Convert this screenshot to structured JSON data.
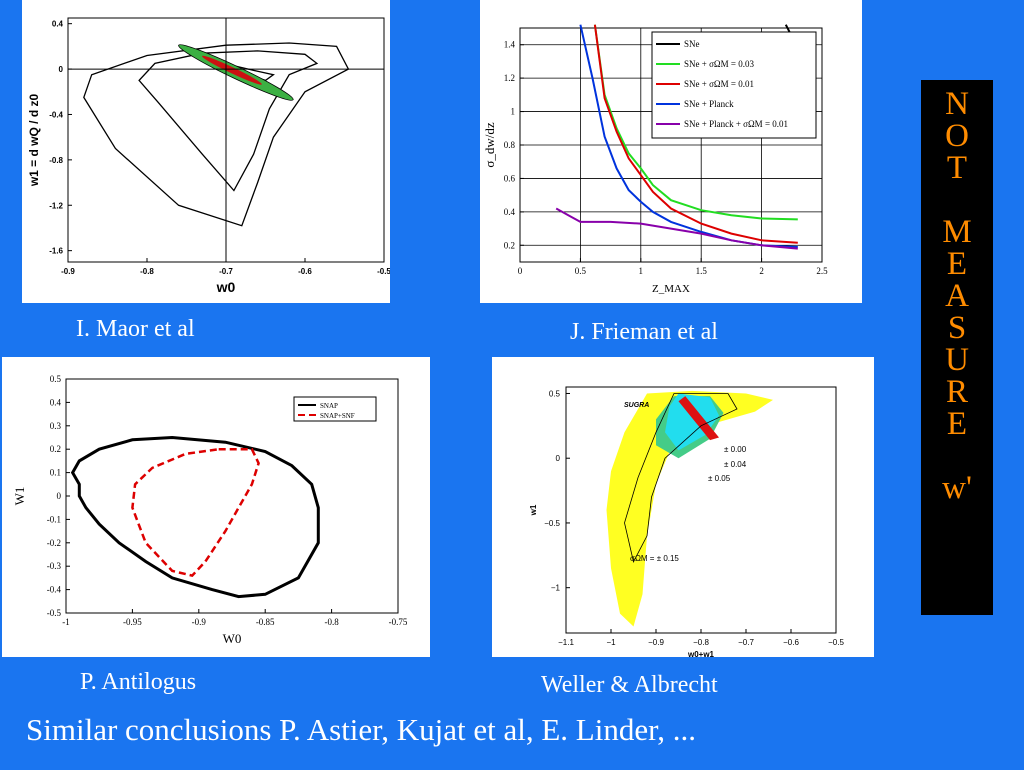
{
  "captions": {
    "maor": "I. Maor et al",
    "frieman": "J. Frieman et al",
    "antilogus": "P. Antilogus",
    "weller": "Weller & Albrecht"
  },
  "side_letters_top": [
    "N",
    "O",
    "T"
  ],
  "side_letters_mid": [
    "M",
    "E",
    "A",
    "S",
    "U",
    "R",
    "E"
  ],
  "side_word_bottom": "w'",
  "bottom_text": "Similar conclusions P. Astier, Kujat et al, E. Linder, ...",
  "colors": {
    "background": "#1a75f0",
    "side_text": "#ff8c00"
  },
  "chart_data": [
    {
      "id": "maor",
      "type": "line",
      "xlabel": "w0",
      "ylabel": "w1 = d wQ / d z0",
      "xlim": [
        -0.9,
        -0.5
      ],
      "ylim": [
        -1.7,
        0.45
      ],
      "x_ticks": [
        "-0.9",
        "-0.8",
        "-0.7",
        "-0.6",
        "-0.5"
      ],
      "y_ticks": [
        "0.4",
        "0",
        "-0.4",
        "-0.8",
        "-1.2",
        "-1.6"
      ],
      "x_tick_values": [
        -0.9,
        -0.8,
        -0.7,
        -0.6,
        -0.5
      ],
      "y_tick_values": [
        0.4,
        0,
        -0.4,
        -0.8,
        -1.2,
        -1.6
      ],
      "series": [
        {
          "values": [
            [
              -0.56,
              0.2
            ],
            [
              -0.545,
              0
            ],
            [
              -0.6,
              -0.2
            ],
            [
              -0.64,
              -0.6
            ],
            [
              -0.66,
              -1.0
            ],
            [
              -0.68,
              -1.38
            ],
            [
              -0.76,
              -1.2
            ],
            [
              -0.84,
              -0.7
            ],
            [
              -0.88,
              -0.25
            ],
            [
              -0.87,
              -0.05
            ],
            [
              -0.8,
              0.12
            ],
            [
              -0.7,
              0.21
            ],
            [
              -0.62,
              0.23
            ],
            [
              -0.56,
              0.2
            ]
          ]
        },
        {
          "values": [
            [
              -0.6,
              0.13
            ],
            [
              -0.585,
              0.05
            ],
            [
              -0.62,
              -0.05
            ],
            [
              -0.645,
              -0.35
            ],
            [
              -0.665,
              -0.75
            ],
            [
              -0.69,
              -1.07
            ],
            [
              -0.73,
              -0.75
            ],
            [
              -0.785,
              -0.3
            ],
            [
              -0.81,
              -0.1
            ],
            [
              -0.79,
              0.05
            ],
            [
              -0.73,
              0.14
            ],
            [
              -0.66,
              0.16
            ],
            [
              -0.6,
              0.13
            ]
          ]
        },
        {
          "values": [
            [
              -0.725,
              0.1
            ],
            [
              -0.71,
              0.02
            ],
            [
              -0.68,
              -0.03
            ],
            [
              -0.65,
              -0.1
            ],
            [
              -0.64,
              -0.05
            ],
            [
              -0.66,
              -0.02
            ],
            [
              -0.69,
              0.03
            ],
            [
              -0.725,
              0.1
            ]
          ]
        }
      ],
      "green_band": [
        [
          -0.76,
          0.21
        ],
        [
          -0.615,
          -0.27
        ]
      ],
      "red_band": [
        [
          -0.73,
          0.12
        ],
        [
          -0.655,
          -0.14
        ]
      ],
      "vline": -0.7,
      "hline": 0
    },
    {
      "id": "frieman",
      "type": "line",
      "xlabel": "Z_MAX",
      "ylabel": "σ_dw/dz",
      "xlim": [
        0,
        2.5
      ],
      "ylim": [
        0.1,
        1.5
      ],
      "x_ticks": [
        "0",
        "0.5",
        "1",
        "1.5",
        "2",
        "2.5"
      ],
      "y_ticks": [
        "0.2",
        "0.4",
        "0.6",
        "0.8",
        "1",
        "1.2",
        "1.4"
      ],
      "x_tick_values": [
        0,
        0.5,
        1,
        1.5,
        2,
        2.5
      ],
      "y_tick_values": [
        0.2,
        0.4,
        0.6,
        0.8,
        1,
        1.2,
        1.4
      ],
      "legend_position": "top-right",
      "legend": [
        "SNe",
        "SNe + σΩM = 0.03",
        "SNe + σΩM = 0.01",
        "SNe + Planck",
        "SNe + Planck + σΩM = 0.01"
      ],
      "series": [
        {
          "name": "SNe",
          "color": "#000000",
          "values": [
            [
              2.2,
              1.52
            ],
            [
              2.3,
              1.38
            ]
          ]
        },
        {
          "name": "SNe + σΩM = 0.03",
          "color": "#22dd22",
          "values": [
            [
              0.62,
              1.52
            ],
            [
              0.7,
              1.1
            ],
            [
              0.8,
              0.9
            ],
            [
              0.9,
              0.75
            ],
            [
              1.0,
              0.66
            ],
            [
              1.1,
              0.56
            ],
            [
              1.25,
              0.47
            ],
            [
              1.5,
              0.41
            ],
            [
              1.75,
              0.38
            ],
            [
              2.0,
              0.36
            ],
            [
              2.3,
              0.355
            ]
          ]
        },
        {
          "name": "SNe + σΩM = 0.01",
          "color": "#dd0000",
          "values": [
            [
              0.62,
              1.52
            ],
            [
              0.7,
              1.08
            ],
            [
              0.8,
              0.88
            ],
            [
              0.9,
              0.72
            ],
            [
              1.0,
              0.62
            ],
            [
              1.1,
              0.52
            ],
            [
              1.25,
              0.42
            ],
            [
              1.5,
              0.33
            ],
            [
              1.75,
              0.27
            ],
            [
              2.0,
              0.23
            ],
            [
              2.3,
              0.215
            ]
          ]
        },
        {
          "name": "SNe + Planck",
          "color": "#0033dd",
          "values": [
            [
              0.5,
              1.52
            ],
            [
              0.6,
              1.2
            ],
            [
              0.7,
              0.85
            ],
            [
              0.8,
              0.66
            ],
            [
              0.9,
              0.53
            ],
            [
              1.0,
              0.46
            ],
            [
              1.1,
              0.4
            ],
            [
              1.25,
              0.34
            ],
            [
              1.5,
              0.28
            ],
            [
              1.75,
              0.23
            ],
            [
              2.0,
              0.2
            ],
            [
              2.3,
              0.19
            ]
          ]
        },
        {
          "name": "SNe + Planck + σΩM = 0.01",
          "color": "#8800aa",
          "values": [
            [
              0.3,
              0.42
            ],
            [
              0.4,
              0.38
            ],
            [
              0.5,
              0.34
            ],
            [
              0.75,
              0.34
            ],
            [
              1.0,
              0.33
            ],
            [
              1.25,
              0.3
            ],
            [
              1.5,
              0.27
            ],
            [
              1.75,
              0.23
            ],
            [
              2.0,
              0.2
            ],
            [
              2.3,
              0.18
            ]
          ]
        }
      ]
    },
    {
      "id": "antilogus",
      "type": "line",
      "xlabel": "W0",
      "ylabel": "W1",
      "xlim": [
        -1,
        -0.75
      ],
      "ylim": [
        -0.5,
        0.5
      ],
      "x_ticks": [
        "-1",
        "-0.95",
        "-0.9",
        "-0.85",
        "-0.8",
        "-0.75"
      ],
      "y_ticks": [
        "0.5",
        "0.4",
        "0.3",
        "0.2",
        "0.1",
        "0",
        "-0.1",
        "-0.2",
        "-0.3",
        "-0.4",
        "-0.5"
      ],
      "x_tick_values": [
        -1,
        -0.95,
        -0.9,
        -0.85,
        -0.8,
        -0.75
      ],
      "y_tick_values": [
        0.5,
        0.4,
        0.3,
        0.2,
        0.1,
        0,
        -0.1,
        -0.2,
        -0.3,
        -0.4,
        -0.5
      ],
      "legend_position": "top-right",
      "legend": [
        "SNAP",
        "SNAP+SNF"
      ],
      "series": [
        {
          "name": "SNAP",
          "color": "#000000",
          "values": [
            [
              -0.995,
              0.1
            ],
            [
              -0.99,
              0.05
            ],
            [
              -0.99,
              0.0
            ],
            [
              -0.985,
              -0.05
            ],
            [
              -0.975,
              -0.12
            ],
            [
              -0.96,
              -0.2
            ],
            [
              -0.94,
              -0.28
            ],
            [
              -0.92,
              -0.35
            ],
            [
              -0.89,
              -0.4
            ],
            [
              -0.87,
              -0.43
            ],
            [
              -0.85,
              -0.42
            ],
            [
              -0.825,
              -0.35
            ],
            [
              -0.81,
              -0.2
            ],
            [
              -0.81,
              -0.05
            ],
            [
              -0.815,
              0.05
            ],
            [
              -0.83,
              0.13
            ],
            [
              -0.85,
              0.19
            ],
            [
              -0.88,
              0.23
            ],
            [
              -0.92,
              0.25
            ],
            [
              -0.95,
              0.24
            ],
            [
              -0.975,
              0.2
            ],
            [
              -0.99,
              0.15
            ],
            [
              -0.995,
              0.1
            ]
          ]
        },
        {
          "name": "SNAP+SNF",
          "color": "#dd0000",
          "values": [
            [
              -0.885,
              0.2
            ],
            [
              -0.86,
              0.2
            ],
            [
              -0.855,
              0.14
            ],
            [
              -0.86,
              0.05
            ],
            [
              -0.87,
              -0.05
            ],
            [
              -0.88,
              -0.15
            ],
            [
              -0.895,
              -0.28
            ],
            [
              -0.905,
              -0.34
            ],
            [
              -0.92,
              -0.32
            ],
            [
              -0.94,
              -0.2
            ],
            [
              -0.95,
              -0.05
            ],
            [
              -0.948,
              0.05
            ],
            [
              -0.935,
              0.12
            ],
            [
              -0.91,
              0.18
            ],
            [
              -0.885,
              0.2
            ]
          ]
        }
      ]
    },
    {
      "id": "weller",
      "type": "area",
      "title": "SUGRA",
      "xlabel": "w0+w1",
      "ylabel": "w1",
      "xlim": [
        -1.1,
        -0.5
      ],
      "ylim": [
        -1.35,
        0.55
      ],
      "x_ticks": [
        "−1.1",
        "−1",
        "−0.9",
        "−0.8",
        "−0.7",
        "−0.6",
        "−0.5"
      ],
      "y_ticks": [
        "0.5",
        "0",
        "−0.5",
        "−1"
      ],
      "x_tick_values": [
        -1.1,
        -1.0,
        -0.9,
        -0.8,
        -0.7,
        -0.6,
        -0.5
      ],
      "y_tick_values": [
        0.5,
        0,
        -0.5,
        -1.0
      ],
      "annotations": [
        "± 0.00",
        "± 0.04",
        "± 0.05",
        "σΩM = ± 0.15"
      ],
      "series": [
        {
          "name": "",
          "color": "#ffff22",
          "values": [
            [
              -0.92,
              0.5
            ],
            [
              -0.82,
              0.52
            ],
            [
              -0.7,
              0.5
            ],
            [
              -0.64,
              0.45
            ],
            [
              -0.68,
              0.36
            ],
            [
              -0.74,
              0.3
            ],
            [
              -0.82,
              0.22
            ],
            [
              -0.87,
              0.05
            ],
            [
              -0.9,
              -0.2
            ],
            [
              -0.92,
              -0.6
            ],
            [
              -0.93,
              -1.05
            ],
            [
              -0.95,
              -1.3
            ],
            [
              -0.98,
              -1.2
            ],
            [
              -1.0,
              -0.85
            ],
            [
              -1.01,
              -0.4
            ],
            [
              -1.0,
              -0.1
            ],
            [
              -0.97,
              0.2
            ],
            [
              -0.92,
              0.5
            ]
          ]
        },
        {
          "name": "",
          "color": "#44cc88",
          "values": [
            [
              -0.86,
              0.48
            ],
            [
              -0.78,
              0.48
            ],
            [
              -0.75,
              0.35
            ],
            [
              -0.78,
              0.15
            ],
            [
              -0.85,
              0.0
            ],
            [
              -0.9,
              0.1
            ],
            [
              -0.9,
              0.3
            ],
            [
              -0.86,
              0.48
            ]
          ]
        },
        {
          "name": "",
          "color": "#22ddee",
          "values": [
            [
              -0.85,
              0.5
            ],
            [
              -0.78,
              0.47
            ],
            [
              -0.76,
              0.33
            ],
            [
              -0.79,
              0.18
            ],
            [
              -0.85,
              0.06
            ],
            [
              -0.88,
              0.2
            ],
            [
              -0.87,
              0.4
            ],
            [
              -0.85,
              0.5
            ]
          ]
        },
        {
          "name": "",
          "color": "#dd1111",
          "values": [
            [
              -0.835,
              0.48
            ],
            [
              -0.76,
              0.16
            ],
            [
              -0.78,
              0.14
            ],
            [
              -0.85,
              0.44
            ]
          ]
        }
      ]
    }
  ]
}
